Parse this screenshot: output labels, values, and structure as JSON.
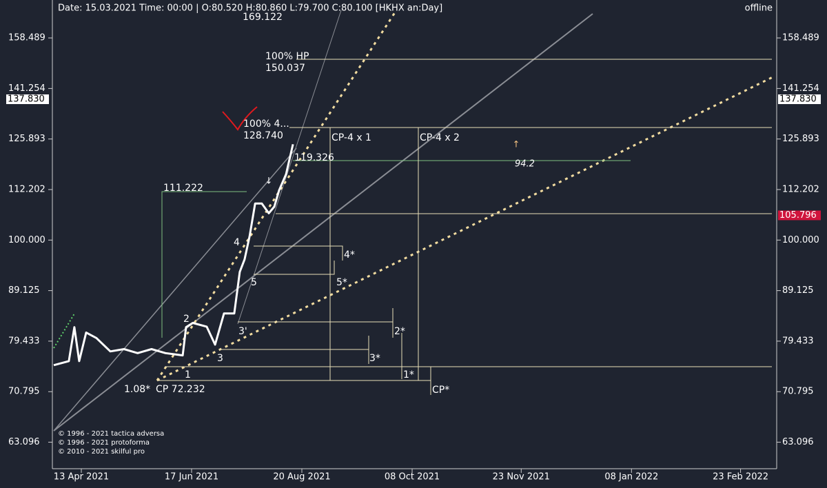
{
  "header": {
    "status": "Date: 15.03.2021 Time: 00:00 | O:80.520 H:80.860 L:79.700 C:80.100  [HKHX an:Day]",
    "connection": "offline"
  },
  "chart_data": {
    "type": "line",
    "log_scale": true,
    "color": "#ffffff",
    "x": [
      0,
      6.3,
      8.6,
      10.6,
      13.5,
      17.8,
      23.6,
      29.3,
      35,
      40.8,
      46.6,
      53.8,
      55.2,
      58,
      63.8,
      67.3,
      71,
      75.3,
      77.6,
      79.6,
      81.7,
      84,
      86.8,
      89.7,
      92,
      94,
      96.9,
      99.8
    ],
    "values": [
      75.2,
      75.9,
      82,
      75.9,
      81,
      80,
      77.6,
      78,
      77.3,
      78,
      77.3,
      76.9,
      82,
      82.8,
      82.1,
      78.8,
      84.6,
      84.6,
      93,
      95.7,
      100.9,
      108.7,
      108.7,
      106.3,
      107.9,
      112,
      116.2,
      124.4
    ],
    "xlim": [
      0,
      301
    ],
    "xticks": [
      {
        "value": 11.5,
        "label": "13 Apr 2021"
      },
      {
        "value": 57.5,
        "label": "17 Jun 2021"
      },
      {
        "value": 103.5,
        "label": "20 Aug 2021"
      },
      {
        "value": 149.5,
        "label": "08 Oct 2021"
      },
      {
        "value": 195,
        "label": "23 Nov 2021"
      },
      {
        "value": 241,
        "label": "08 Jan 2022"
      },
      {
        "value": 286.5,
        "label": "23 Feb 2022"
      }
    ],
    "ylim": [
      59.4,
      172.8
    ],
    "yticks": [
      63.096,
      70.795,
      79.433,
      89.125,
      {
        "value": 100,
        "label": "100.000"
      },
      112.202,
      125.893,
      141.254,
      158.489
    ],
    "price_tags": [
      {
        "value": 137.83,
        "label": "137.830",
        "color": "#ffffff",
        "both_sides": true
      },
      {
        "value": 105.796,
        "color": "#d0143c",
        "both_sides": false
      }
    ],
    "annotations": [
      "169.122",
      "100% HP",
      "150.037",
      "100%  4...",
      "128.740",
      "119.326",
      "111.222",
      "CP-4 x 1",
      "CP-4 x 2",
      "94.2",
      "4",
      "4*",
      "5",
      "5*",
      "2",
      "3'",
      "2*",
      "3",
      "3*",
      "1",
      "1*",
      "1.08*",
      "CP  72.232",
      "CP*"
    ],
    "copyright": [
      "© 1996 - 2021 tactica adversa",
      "© 1996 - 2021 protoforma",
      "© 2010 - 2021 skilful pro"
    ]
  }
}
